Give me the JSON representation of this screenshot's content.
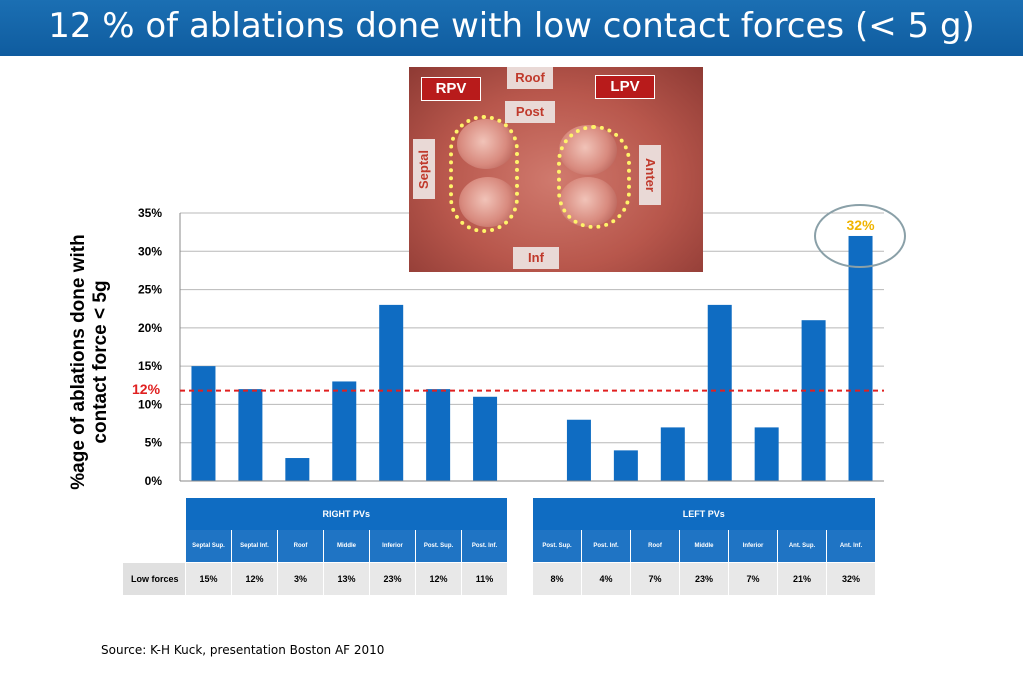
{
  "title": "12 % of ablations done with low contact forces (< 5 g)",
  "chart_data": {
    "type": "bar",
    "categories": [
      "Septal Sup.",
      "Septal Inf.",
      "Roof",
      "Middle",
      "Inferior",
      "Post. Sup.",
      "Post. Inf.",
      "",
      "Post. Sup.",
      "Post. Inf.",
      "Roof",
      "Middle",
      "Inferior",
      "Ant. Sup.",
      "Ant. Inf."
    ],
    "values": [
      15,
      12,
      3,
      13,
      23,
      12,
      11,
      null,
      8,
      4,
      7,
      23,
      7,
      21,
      32
    ],
    "ylabel": "%age of ablations done with contact force < 5g",
    "ylim": [
      0,
      35
    ],
    "yticks": [
      "0%",
      "5%",
      "10%",
      "15%",
      "20%",
      "25%",
      "30%",
      "35%"
    ],
    "reference_line": {
      "value": 12,
      "label": "12%",
      "color": "#e02020"
    },
    "highlight": {
      "label": "32%",
      "color": "#f0b400"
    },
    "bar_color": "#0f6cc2",
    "grid": true
  },
  "image_labels": {
    "rpv": "RPV",
    "lpv": "LPV",
    "roof": "Roof",
    "post": "Post",
    "septal": "Septal",
    "anter": "Anter",
    "inf": "Inf"
  },
  "right_table": {
    "group": "RIGHT PVs",
    "row_label": "Low forces",
    "columns": [
      "Septal Sup.",
      "Septal Inf.",
      "Roof",
      "Middle",
      "Inferior",
      "Post. Sup.",
      "Post. Inf."
    ],
    "values": [
      "15%",
      "12%",
      "3%",
      "13%",
      "23%",
      "12%",
      "11%"
    ]
  },
  "left_table": {
    "group": "LEFT PVs",
    "columns": [
      "Post. Sup.",
      "Post. Inf.",
      "Roof",
      "Middle",
      "Inferior",
      "Ant. Sup.",
      "Ant. Inf."
    ],
    "values": [
      "8%",
      "4%",
      "7%",
      "23%",
      "7%",
      "21%",
      "32%"
    ]
  },
  "source": "Source: K-H Kuck, presentation Boston AF 2010"
}
